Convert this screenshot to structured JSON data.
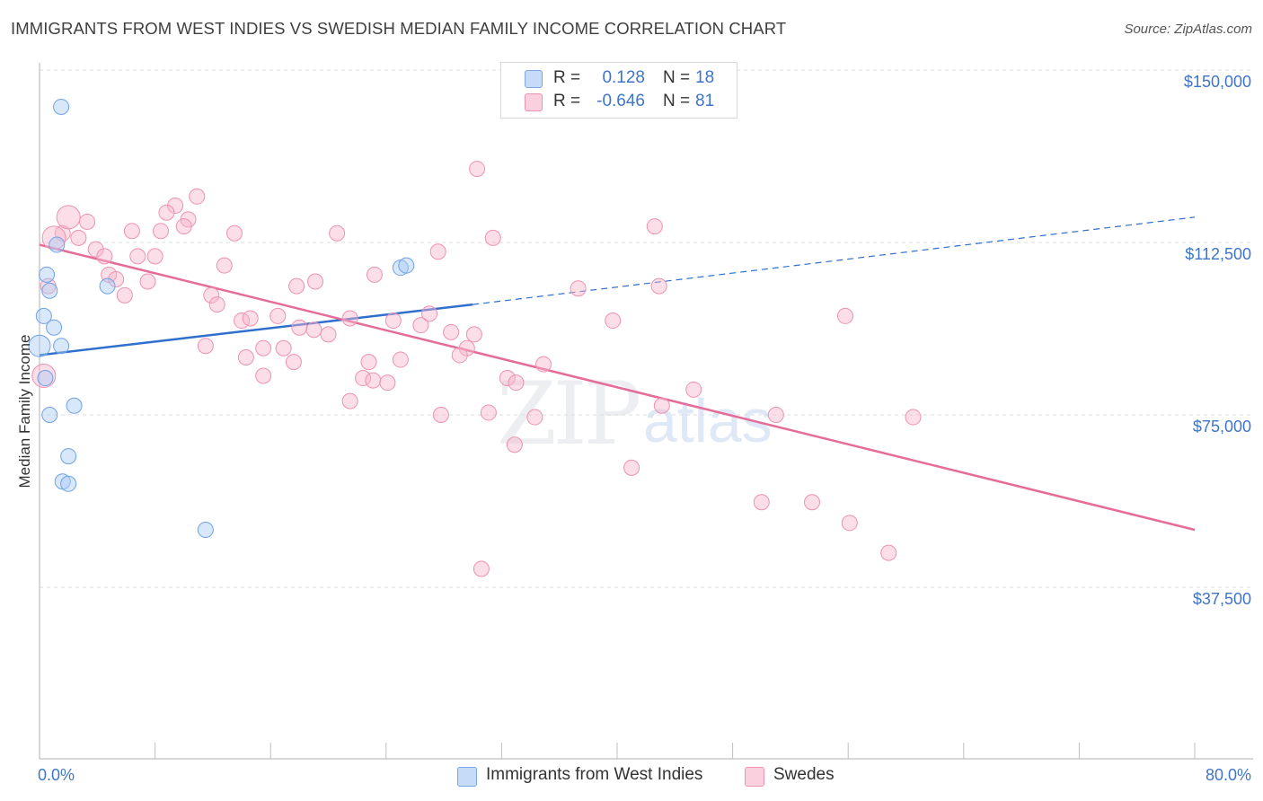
{
  "title": "IMMIGRANTS FROM WEST INDIES VS SWEDISH MEDIAN FAMILY INCOME CORRELATION CHART",
  "source": "Source: ZipAtlas.com",
  "watermark": {
    "zip": "ZIP",
    "atlas": "atlas"
  },
  "legend": {
    "rows": [
      {
        "r_label": "R =",
        "r_value": "0.128",
        "n_label": "N =",
        "n_value": "18",
        "color": "#a9c9f5"
      },
      {
        "r_label": "R =",
        "r_value": "-0.646",
        "n_label": "N =",
        "n_value": "81",
        "color": "#f7b6cb"
      }
    ]
  },
  "bottom_legend": {
    "series1": "Immigrants from West Indies",
    "series2": "Swedes"
  },
  "chart_data": {
    "type": "scatter",
    "title": "IMMIGRANTS FROM WEST INDIES VS SWEDISH MEDIAN FAMILY INCOME CORRELATION CHART",
    "xlabel": "",
    "ylabel": "Median Family Income",
    "xlim": [
      0,
      80
    ],
    "ylim": [
      0,
      155000
    ],
    "x_tick_labels": [
      "0.0%",
      "80.0%"
    ],
    "y_ticks": [
      37500,
      75000,
      112500,
      150000
    ],
    "y_tick_labels": [
      "$37,500",
      "$75,000",
      "$112,500",
      "$150,000"
    ],
    "grid": true,
    "legend_position": "top-center",
    "colors": {
      "series1": "#6fa3e6",
      "series2": "#ee86a9",
      "line1": "#2f6fce",
      "line2": "#e56b98"
    },
    "series": [
      {
        "name": "Immigrants from West Indies",
        "r": 0.128,
        "n": 18,
        "trend": {
          "x0": 0,
          "y0": 88000,
          "x1": 30,
          "y1": 99000,
          "x_dash_end": 80,
          "y_dash_end": 118000
        },
        "points": [
          [
            1.5,
            142000
          ],
          [
            1.2,
            112000
          ],
          [
            0.5,
            105500
          ],
          [
            0.7,
            102000
          ],
          [
            0.3,
            96500
          ],
          [
            1.0,
            94000
          ],
          [
            1.5,
            90000
          ],
          [
            0.0,
            90000
          ],
          [
            0.4,
            83000
          ],
          [
            2.4,
            77000
          ],
          [
            0.7,
            75000
          ],
          [
            2.0,
            66000
          ],
          [
            1.6,
            60500
          ],
          [
            2.0,
            60000
          ],
          [
            11.5,
            50000
          ],
          [
            4.7,
            103000
          ],
          [
            25.0,
            107000
          ],
          [
            25.4,
            107500
          ]
        ]
      },
      {
        "name": "Swedes",
        "r": -0.646,
        "n": 81,
        "trend": {
          "x0": 0,
          "y0": 112000,
          "x1": 80,
          "y1": 50000
        },
        "points": [
          [
            30.3,
            128500
          ],
          [
            10.9,
            122500
          ],
          [
            9.4,
            120500
          ],
          [
            8.8,
            119000
          ],
          [
            10.3,
            117500
          ],
          [
            3.3,
            117000
          ],
          [
            10.0,
            116000
          ],
          [
            42.6,
            116000
          ],
          [
            6.4,
            115000
          ],
          [
            8.4,
            115000
          ],
          [
            13.5,
            114500
          ],
          [
            20.6,
            114500
          ],
          [
            1.6,
            114500
          ],
          [
            31.4,
            113500
          ],
          [
            2.7,
            113500
          ],
          [
            3.9,
            111000
          ],
          [
            27.6,
            110500
          ],
          [
            8.0,
            109500
          ],
          [
            4.5,
            109500
          ],
          [
            6.8,
            109500
          ],
          [
            12.8,
            107500
          ],
          [
            4.8,
            105500
          ],
          [
            5.3,
            104500
          ],
          [
            23.2,
            105500
          ],
          [
            7.5,
            104000
          ],
          [
            19.1,
            104000
          ],
          [
            0.6,
            103000
          ],
          [
            17.8,
            103000
          ],
          [
            37.3,
            102500
          ],
          [
            42.9,
            103000
          ],
          [
            11.9,
            101000
          ],
          [
            5.9,
            101000
          ],
          [
            12.3,
            99000
          ],
          [
            16.5,
            96500
          ],
          [
            27.0,
            97000
          ],
          [
            21.5,
            96000
          ],
          [
            14.0,
            95500
          ],
          [
            14.6,
            96000
          ],
          [
            24.5,
            95500
          ],
          [
            55.8,
            96500
          ],
          [
            39.7,
            95500
          ],
          [
            26.4,
            94500
          ],
          [
            18.0,
            94000
          ],
          [
            19.0,
            93500
          ],
          [
            20.0,
            92500
          ],
          [
            28.5,
            93000
          ],
          [
            30.1,
            92500
          ],
          [
            11.5,
            90000
          ],
          [
            15.5,
            89500
          ],
          [
            16.9,
            89500
          ],
          [
            29.6,
            89500
          ],
          [
            14.3,
            87500
          ],
          [
            29.1,
            88000
          ],
          [
            17.6,
            86500
          ],
          [
            22.8,
            86500
          ],
          [
            25.0,
            87000
          ],
          [
            34.9,
            86000
          ],
          [
            15.5,
            83500
          ],
          [
            22.4,
            83000
          ],
          [
            23.1,
            82500
          ],
          [
            24.1,
            82000
          ],
          [
            32.4,
            83000
          ],
          [
            33.0,
            82000
          ],
          [
            45.3,
            80500
          ],
          [
            21.5,
            78000
          ],
          [
            27.8,
            75000
          ],
          [
            31.1,
            75500
          ],
          [
            34.3,
            74500
          ],
          [
            43.1,
            77000
          ],
          [
            51.0,
            75000
          ],
          [
            60.5,
            74500
          ],
          [
            32.9,
            68500
          ],
          [
            41.0,
            63500
          ],
          [
            50.0,
            56000
          ],
          [
            53.5,
            56000
          ],
          [
            56.1,
            51500
          ],
          [
            58.8,
            45000
          ],
          [
            30.6,
            41500
          ],
          [
            1.0,
            113500
          ],
          [
            0.3,
            83500
          ],
          [
            2.0,
            118000
          ]
        ]
      }
    ]
  }
}
